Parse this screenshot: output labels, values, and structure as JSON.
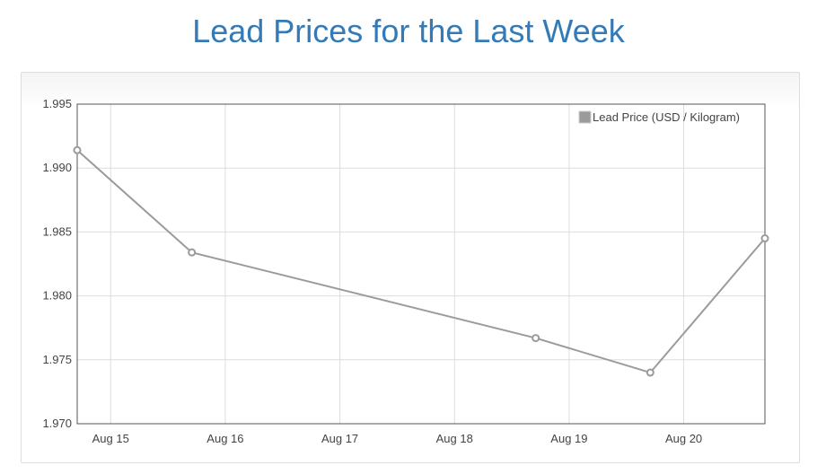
{
  "page": {
    "title": "Lead Prices for the Last Week"
  },
  "chart_data": {
    "type": "line",
    "title": "Lead Prices for the Last Week",
    "xlabel": "",
    "ylabel": "",
    "ylim": [
      1.97,
      1.995
    ],
    "yticks": [
      "1.995",
      "1.990",
      "1.985",
      "1.980",
      "1.975",
      "1.970"
    ],
    "x_ticks": [
      "Aug 15",
      "Aug 16",
      "Aug 17",
      "Aug 18",
      "Aug 19",
      "Aug 20"
    ],
    "grid": true,
    "legend": "top-right",
    "series": [
      {
        "name": "Lead Price (USD / Kilogram)",
        "color": "#9b9b9b",
        "points": [
          {
            "x": "2023-08-14 17:00",
            "y": 1.9914
          },
          {
            "x": "2023-08-15 17:00",
            "y": 1.9834
          },
          {
            "x": "2023-08-18 17:00",
            "y": 1.9767
          },
          {
            "x": "2023-08-19 17:00",
            "y": 1.974
          },
          {
            "x": "2023-08-20 17:00",
            "y": 1.9845
          }
        ]
      }
    ]
  }
}
